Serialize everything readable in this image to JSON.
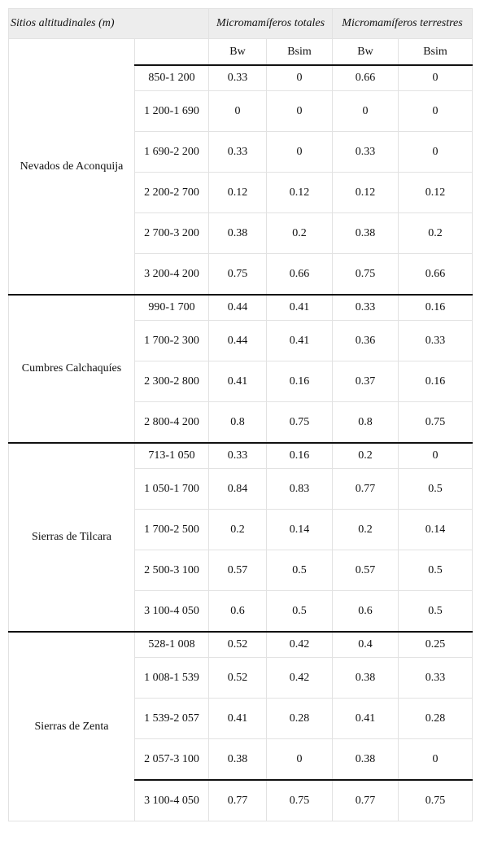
{
  "header": {
    "col_site": "Sitios altitudinales (m)",
    "col_total": "Micromamíferos totales",
    "col_terrestre": "Micromamíferos terrestres",
    "sub_bw_1": "Bw",
    "sub_bsim_1": "Bsim",
    "sub_bw_2": "Bw",
    "sub_bsim_2": "Bsim"
  },
  "groups": [
    {
      "site": "Nevados de Aconquija",
      "rows": [
        {
          "range": "850-1 200",
          "bw_t": "0.33",
          "bsim_t": "0",
          "bw_r": "0.66",
          "bsim_r": "0"
        },
        {
          "range": "1 200-1 690",
          "bw_t": "0",
          "bsim_t": "0",
          "bw_r": "0",
          "bsim_r": "0"
        },
        {
          "range": "1 690-2 200",
          "bw_t": "0.33",
          "bsim_t": "0",
          "bw_r": "0.33",
          "bsim_r": "0"
        },
        {
          "range": "2 200-2 700",
          "bw_t": "0.12",
          "bsim_t": "0.12",
          "bw_r": "0.12",
          "bsim_r": "0.12"
        },
        {
          "range": "2 700-3 200",
          "bw_t": "0.38",
          "bsim_t": "0.2",
          "bw_r": "0.38",
          "bsim_r": "0.2"
        },
        {
          "range": "3 200-4 200",
          "bw_t": "0.75",
          "bsim_t": "0.66",
          "bw_r": "0.75",
          "bsim_r": "0.66"
        }
      ]
    },
    {
      "site": "Cumbres Calchaquíes",
      "rows": [
        {
          "range": "990-1 700",
          "bw_t": "0.44",
          "bsim_t": "0.41",
          "bw_r": "0.33",
          "bsim_r": "0.16"
        },
        {
          "range": "1 700-2 300",
          "bw_t": "0.44",
          "bsim_t": "0.41",
          "bw_r": "0.36",
          "bsim_r": "0.33"
        },
        {
          "range": "2 300-2 800",
          "bw_t": "0.41",
          "bsim_t": "0.16",
          "bw_r": "0.37",
          "bsim_r": "0.16"
        },
        {
          "range": "2 800-4 200",
          "bw_t": "0.8",
          "bsim_t": "0.75",
          "bw_r": "0.8",
          "bsim_r": "0.75"
        }
      ]
    },
    {
      "site": "Sierras de Tilcara",
      "rows": [
        {
          "range": "713-1 050",
          "bw_t": "0.33",
          "bsim_t": "0.16",
          "bw_r": "0.2",
          "bsim_r": "0"
        },
        {
          "range": "1 050-1 700",
          "bw_t": "0.84",
          "bsim_t": "0.83",
          "bw_r": "0.77",
          "bsim_r": "0.5"
        },
        {
          "range": "1 700-2 500",
          "bw_t": "0.2",
          "bsim_t": "0.14",
          "bw_r": "0.2",
          "bsim_r": "0.14"
        },
        {
          "range": "2 500-3 100",
          "bw_t": "0.57",
          "bsim_t": "0.5",
          "bw_r": "0.57",
          "bsim_r": "0.5"
        },
        {
          "range": "3 100-4 050",
          "bw_t": "0.6",
          "bsim_t": "0.5",
          "bw_r": "0.6",
          "bsim_r": "0.5"
        }
      ]
    },
    {
      "site": "Sierras de Zenta",
      "rows": [
        {
          "range": "528-1 008",
          "bw_t": "0.52",
          "bsim_t": "0.42",
          "bw_r": "0.4",
          "bsim_r": "0.25"
        },
        {
          "range": "1 008-1 539",
          "bw_t": "0.52",
          "bsim_t": "0.42",
          "bw_r": "0.38",
          "bsim_r": "0.33"
        },
        {
          "range": "1 539-2 057",
          "bw_t": "0.41",
          "bsim_t": "0.28",
          "bw_r": "0.41",
          "bsim_r": "0.28"
        },
        {
          "range": "2 057-3 100",
          "bw_t": "0.38",
          "bsim_t": "0",
          "bw_r": "0.38",
          "bsim_r": "0"
        },
        {
          "range": "3 100-4 050",
          "bw_t": "0.77",
          "bsim_t": "0.75",
          "bw_r": "0.77",
          "bsim_r": "0.75"
        }
      ]
    }
  ],
  "colors": {
    "header_bg": "#ededed",
    "rule": "#111111",
    "grid": "#e2e2e2"
  }
}
